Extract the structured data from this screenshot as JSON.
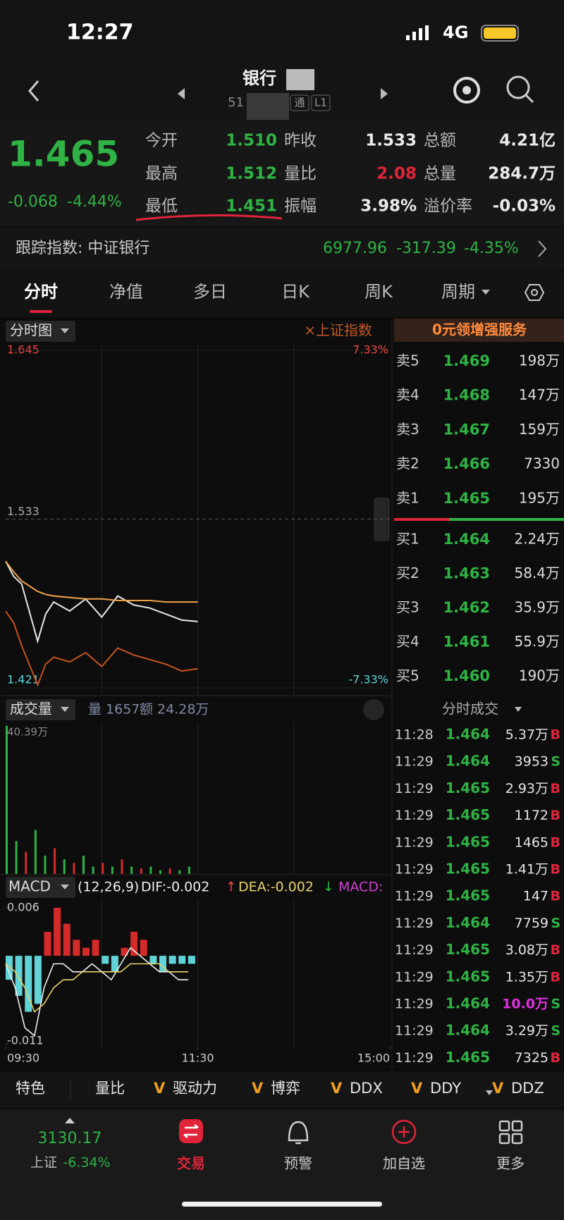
{
  "status_bar": {
    "time": "12:27",
    "network": "4G"
  },
  "header": {
    "title": "银行",
    "code": "51",
    "tags": [
      "通",
      "L1"
    ]
  },
  "quote": {
    "price": "1.465",
    "change": "-0.068",
    "change_pct": "-4.44%",
    "fields": [
      [
        "今开",
        "1.510"
      ],
      [
        "昨收",
        "1.533"
      ],
      [
        "总额",
        "4.21亿"
      ],
      [
        "最高",
        "1.512"
      ],
      [
        "量比",
        "2.08"
      ],
      [
        "总量",
        "284.7万"
      ],
      [
        "最低",
        "1.451"
      ],
      [
        "振幅",
        "3.98%"
      ],
      [
        "溢价率",
        "-0.03%"
      ]
    ]
  },
  "tracking": {
    "label": "跟踪指数: 中证银行",
    "value": "6977.96",
    "change": "-317.39",
    "change_pct": "-4.35%"
  },
  "tabs": [
    "分时",
    "净值",
    "多日",
    "日K",
    "周K",
    "周期"
  ],
  "promo": "0元领增强服务",
  "order_book": [
    {
      "label": "卖5",
      "price": "1.469",
      "volume": "198万"
    },
    {
      "label": "卖4",
      "price": "1.468",
      "volume": "147万"
    },
    {
      "label": "卖3",
      "price": "1.467",
      "volume": "159万"
    },
    {
      "label": "卖2",
      "price": "1.466",
      "volume": "7330"
    },
    {
      "label": "卖1",
      "price": "1.465",
      "volume": "195万"
    },
    {
      "label": "买1",
      "price": "1.464",
      "volume": "2.24万"
    },
    {
      "label": "买2",
      "price": "1.463",
      "volume": "58.4万"
    },
    {
      "label": "买3",
      "price": "1.462",
      "volume": "35.9万"
    },
    {
      "label": "买4",
      "price": "1.461",
      "volume": "55.9万"
    },
    {
      "label": "买5",
      "price": "1.460",
      "volume": "190万"
    }
  ],
  "trades": {
    "title": "分时成交",
    "rows": [
      [
        "11:28",
        "1.464",
        "5.37万",
        "B"
      ],
      [
        "11:29",
        "1.464",
        "3953",
        "S"
      ],
      [
        "11:29",
        "1.465",
        "2.93万",
        "B"
      ],
      [
        "11:29",
        "1.465",
        "1172",
        "B"
      ],
      [
        "11:29",
        "1.465",
        "1465",
        "B"
      ],
      [
        "11:29",
        "1.465",
        "1.41万",
        "B"
      ],
      [
        "11:29",
        "1.465",
        "147",
        "B"
      ],
      [
        "11:29",
        "1.464",
        "7759",
        "S"
      ],
      [
        "11:29",
        "1.465",
        "3.08万",
        "B"
      ],
      [
        "11:29",
        "1.465",
        "1.35万",
        "B"
      ],
      [
        "11:29",
        "1.464",
        "10.0万",
        "S"
      ],
      [
        "11:29",
        "1.464",
        "3.29万",
        "S"
      ],
      [
        "11:29",
        "1.465",
        "7325",
        "B"
      ]
    ]
  },
  "chart_data": [
    {
      "type": "line",
      "title": "分时图",
      "overlay_label": "×上证指数",
      "x": [
        0,
        5,
        10,
        20,
        25,
        30,
        40,
        50,
        60,
        70,
        80,
        90,
        100,
        110,
        120
      ],
      "xlim": [
        0,
        240
      ],
      "ylim": [
        1.421,
        1.645
      ],
      "yticks": [
        1.421,
        1.533,
        1.645
      ],
      "y2lim": [
        -7.33,
        7.33
      ],
      "y2ticks": [
        {
          "value": -7.33,
          "label": "-7.33%"
        },
        {
          "value": 7.33,
          "label": "7.33%"
        }
      ],
      "series": [
        {
          "color": "#e8e8e8",
          "values": [
            1.505,
            1.495,
            1.49,
            1.452,
            1.47,
            1.478,
            1.472,
            1.48,
            1.468,
            1.482,
            1.476,
            1.474,
            1.47,
            1.466,
            1.465
          ]
        },
        {
          "color": "#f0a24a",
          "values": [
            1.505,
            1.498,
            1.492,
            1.485,
            1.483,
            1.482,
            1.481,
            1.48,
            1.48,
            1.479,
            1.479,
            1.479,
            1.478,
            1.478,
            1.478
          ]
        },
        {
          "color": "#c4541f",
          "axis": "y2",
          "values": [
            -4.0,
            -4.5,
            -5.5,
            -7.2,
            -6.3,
            -6.0,
            -6.2,
            -5.8,
            -6.4,
            -5.6,
            -5.9,
            -6.1,
            -6.3,
            -6.6,
            -6.5
          ]
        }
      ]
    },
    {
      "type": "bar",
      "title": "成交量",
      "annotations": [
        "量 1657",
        "额 24.28万"
      ],
      "x": [
        0,
        6,
        12,
        18,
        24,
        30,
        36,
        42,
        48,
        54,
        60,
        66,
        72,
        78,
        84,
        90,
        96,
        102,
        108,
        114
      ],
      "xlim": [
        0,
        240
      ],
      "values": [
        40.39,
        9,
        6,
        12,
        5,
        7,
        4,
        3,
        5,
        2,
        3,
        2,
        4,
        2,
        1.5,
        2,
        1,
        1.5,
        1,
        2
      ],
      "colors": [
        "#2fb344",
        "#2fb344",
        "#d42a2a",
        "#2fb344",
        "#2fb344",
        "#d42a2a",
        "#2fb344",
        "#d42a2a",
        "#2fb344",
        "#2fb344",
        "#d42a2a",
        "#2fb344",
        "#d42a2a",
        "#2fb344",
        "#d42a2a",
        "#2fb344",
        "#2fb344",
        "#d42a2a",
        "#2fb344",
        "#2fb344"
      ],
      "ylim": [
        0,
        40.39
      ],
      "yticks": [
        {
          "value": 40.39,
          "label": "40.39万"
        }
      ]
    },
    {
      "type": "macd",
      "title": "MACD",
      "params": "(12,26,9)",
      "dif_label": "DIF:-0.002",
      "dif_arrow": "↑",
      "dea_label": "DEA:-0.002",
      "dea_arrow": "↓",
      "macd_label": "MACD:",
      "x": [
        0,
        6,
        12,
        18,
        24,
        30,
        36,
        42,
        48,
        54,
        60,
        66,
        72,
        78,
        84,
        90,
        96,
        102,
        108,
        114
      ],
      "xlim": [
        0,
        240
      ],
      "xticks": [
        {
          "value": 0,
          "label": "09:30"
        },
        {
          "value": 120,
          "label": "11:30"
        },
        {
          "value": 240,
          "label": "15:00"
        }
      ],
      "ylim": [
        -0.011,
        0.006
      ],
      "yticks": [
        -0.011,
        0.006
      ],
      "up_color": "#d42a2a",
      "down_color": "#5fd3d8",
      "values": [
        -0.003,
        -0.005,
        -0.007,
        -0.006,
        0.003,
        0.006,
        0.004,
        0.002,
        0.001,
        0.002,
        -0.001,
        -0.002,
        0.001,
        0.003,
        0.002,
        -0.001,
        -0.002,
        -0.001,
        -0.001,
        -0.001
      ],
      "series": [
        {
          "color": "#f0f0f0",
          "values": [
            -0.001,
            -0.004,
            -0.009,
            -0.01,
            -0.004,
            -0.001,
            -0.001,
            -0.002,
            -0.002,
            -0.001,
            -0.002,
            -0.003,
            -0.001,
            0.001,
            0.0,
            -0.001,
            -0.002,
            -0.002,
            -0.003,
            -0.003
          ]
        },
        {
          "color": "#e8d36a",
          "values": [
            -0.001,
            -0.002,
            -0.004,
            -0.007,
            -0.006,
            -0.004,
            -0.003,
            -0.003,
            -0.002,
            -0.002,
            -0.002,
            -0.002,
            -0.002,
            -0.001,
            -0.001,
            -0.001,
            -0.001,
            -0.002,
            -0.002,
            -0.002
          ]
        }
      ]
    }
  ],
  "indicators": {
    "marker": "V",
    "items": [
      "特色",
      "量比",
      "驱动力",
      "博弈",
      "DDX",
      "DDY",
      "DDZ"
    ]
  },
  "bottom_nav": {
    "index_value": "3130.17",
    "index_name": "上证",
    "index_change": "-6.34%",
    "items": [
      "交易",
      "预警",
      "加自选",
      "更多"
    ]
  }
}
